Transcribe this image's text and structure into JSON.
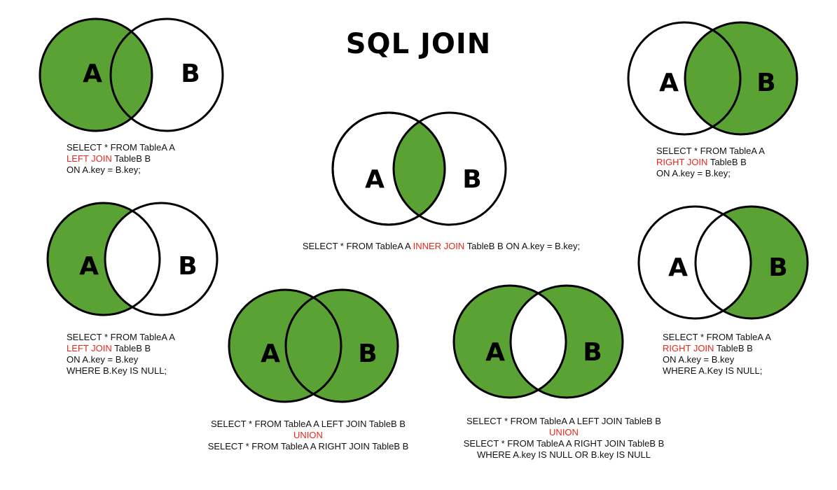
{
  "title": "SQL JOIN",
  "colors": {
    "fill": "#5ba235",
    "stroke": "#000000",
    "keyword": "#e8271d"
  },
  "labels": {
    "a": "A",
    "b": "B"
  },
  "diagrams": {
    "left_join": {
      "lines": [
        {
          "lead": "SELECT * FROM TableA A",
          "kw": "",
          "tail": ""
        },
        {
          "lead": "",
          "kw": "LEFT JOIN",
          "tail": " TableB B"
        },
        {
          "lead": "ON A.key = B.key;",
          "kw": "",
          "tail": ""
        }
      ]
    },
    "inner_join": {
      "lines": [
        {
          "lead": "SELECT * FROM TableA A ",
          "kw": "INNER JOIN",
          "tail": " TableB B ON A.key = B.key;"
        }
      ]
    },
    "right_join": {
      "lines": [
        {
          "lead": "SELECT * FROM TableA A",
          "kw": "",
          "tail": ""
        },
        {
          "lead": "",
          "kw": "RIGHT JOIN",
          "tail": " TableB B"
        },
        {
          "lead": "ON A.key = B.key;",
          "kw": "",
          "tail": ""
        }
      ]
    },
    "left_only": {
      "lines": [
        {
          "lead": "SELECT * FROM TableA A",
          "kw": "",
          "tail": ""
        },
        {
          "lead": "",
          "kw": "LEFT JOIN",
          "tail": " TableB B"
        },
        {
          "lead": "ON A.key = B.key",
          "kw": "",
          "tail": ""
        },
        {
          "lead": "WHERE B.Key IS NULL;",
          "kw": "",
          "tail": ""
        }
      ]
    },
    "right_only": {
      "lines": [
        {
          "lead": "SELECT * FROM TableA A",
          "kw": "",
          "tail": ""
        },
        {
          "lead": "",
          "kw": "RIGHT JOIN",
          "tail": " TableB B"
        },
        {
          "lead": "ON A.key = B.key",
          "kw": "",
          "tail": ""
        },
        {
          "lead": "WHERE A.Key IS NULL;",
          "kw": "",
          "tail": ""
        }
      ]
    },
    "full_outer": {
      "lines": [
        {
          "lead": "SELECT * FROM TableA A LEFT JOIN TableB B",
          "kw": "",
          "tail": ""
        },
        {
          "lead": "",
          "kw": "UNION",
          "tail": ""
        },
        {
          "lead": "SELECT * FROM TableA A RIGHT JOIN TableB B",
          "kw": "",
          "tail": ""
        }
      ]
    },
    "full_outer_exclusive": {
      "lines": [
        {
          "lead": "SELECT * FROM TableA A LEFT JOIN TableB B",
          "kw": "",
          "tail": ""
        },
        {
          "lead": "",
          "kw": "UNION",
          "tail": ""
        },
        {
          "lead": "SELECT * FROM TableA A RIGHT JOIN TableB B",
          "kw": "",
          "tail": ""
        },
        {
          "lead": "WHERE A.key IS NULL OR B.key IS NULL",
          "kw": "",
          "tail": ""
        }
      ]
    }
  }
}
